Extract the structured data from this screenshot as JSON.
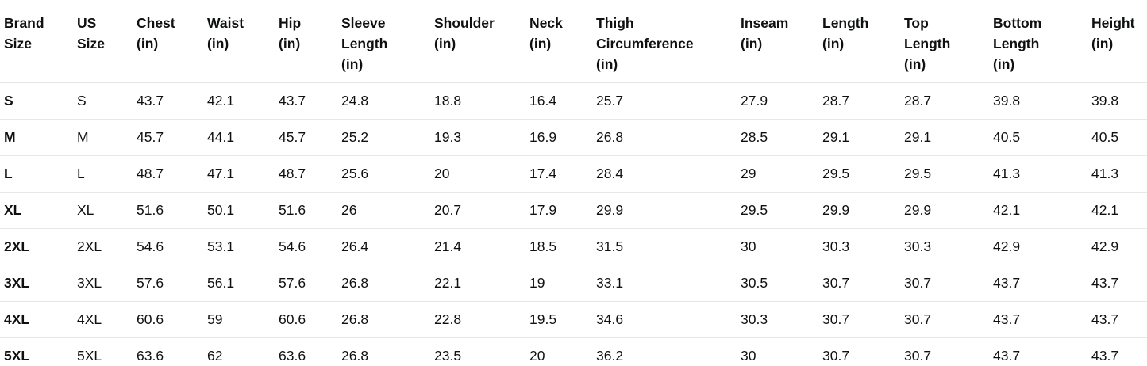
{
  "page": {
    "background_color": "#ffffff",
    "text_color": "#0f1111",
    "divider_color": "#e7e7e7",
    "bottom_border_color": "#d5dbdb"
  },
  "chart_data": {
    "type": "table",
    "columns": [
      "Brand Size",
      "US Size",
      "Chest (in)",
      "Waist (in)",
      "Hip (in)",
      "Sleeve Length (in)",
      "Shoulder (in)",
      "Neck (in)",
      "Thigh Circumference (in)",
      "Inseam (in)",
      "Length (in)",
      "Top Length (in)",
      "Bottom Length (in)",
      "Height (in)"
    ],
    "column_header_lines": [
      [
        "Brand",
        "Size"
      ],
      [
        "US",
        "Size"
      ],
      [
        "Chest",
        "(in)"
      ],
      [
        "Waist",
        "(in)"
      ],
      [
        "Hip",
        "(in)"
      ],
      [
        "Sleeve",
        "Length",
        "(in)"
      ],
      [
        "Shoulder",
        "(in)"
      ],
      [
        "Neck",
        "(in)"
      ],
      [
        "Thigh",
        "Circumference",
        "(in)"
      ],
      [
        "Inseam",
        "(in)"
      ],
      [
        "Length",
        "(in)"
      ],
      [
        "Top",
        "Length",
        "(in)"
      ],
      [
        "Bottom",
        "Length",
        "(in)"
      ],
      [
        "Height",
        "(in)"
      ]
    ],
    "rows": [
      [
        "S",
        "S",
        "43.7",
        "42.1",
        "43.7",
        "24.8",
        "18.8",
        "16.4",
        "25.7",
        "27.9",
        "28.7",
        "28.7",
        "39.8",
        "39.8"
      ],
      [
        "M",
        "M",
        "45.7",
        "44.1",
        "45.7",
        "25.2",
        "19.3",
        "16.9",
        "26.8",
        "28.5",
        "29.1",
        "29.1",
        "40.5",
        "40.5"
      ],
      [
        "L",
        "L",
        "48.7",
        "47.1",
        "48.7",
        "25.6",
        "20",
        "17.4",
        "28.4",
        "29",
        "29.5",
        "29.5",
        "41.3",
        "41.3"
      ],
      [
        "XL",
        "XL",
        "51.6",
        "50.1",
        "51.6",
        "26",
        "20.7",
        "17.9",
        "29.9",
        "29.5",
        "29.9",
        "29.9",
        "42.1",
        "42.1"
      ],
      [
        "2XL",
        "2XL",
        "54.6",
        "53.1",
        "54.6",
        "26.4",
        "21.4",
        "18.5",
        "31.5",
        "30",
        "30.3",
        "30.3",
        "42.9",
        "42.9"
      ],
      [
        "3XL",
        "3XL",
        "57.6",
        "56.1",
        "57.6",
        "26.8",
        "22.1",
        "19",
        "33.1",
        "30.5",
        "30.7",
        "30.7",
        "43.7",
        "43.7"
      ],
      [
        "4XL",
        "4XL",
        "60.6",
        "59",
        "60.6",
        "26.8",
        "22.8",
        "19.5",
        "34.6",
        "30.3",
        "30.7",
        "30.7",
        "43.7",
        "43.7"
      ],
      [
        "5XL",
        "5XL",
        "63.6",
        "62",
        "63.6",
        "26.8",
        "23.5",
        "20",
        "36.2",
        "30",
        "30.7",
        "30.7",
        "43.7",
        "43.7"
      ]
    ],
    "layout": {
      "grid": "horizontal-row-dividers-only",
      "header_position": "top",
      "first_column_bold": true
    }
  }
}
